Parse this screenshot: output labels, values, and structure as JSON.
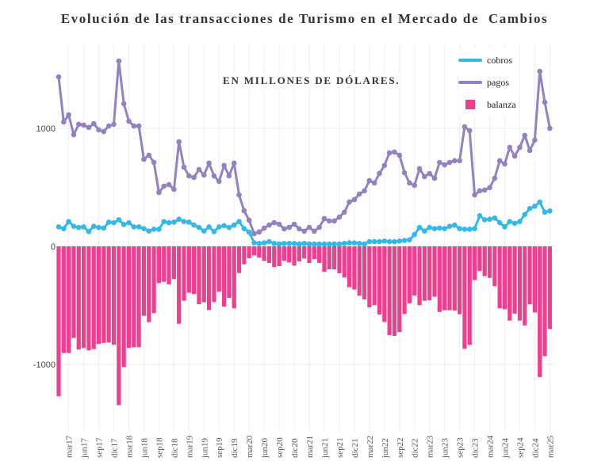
{
  "chart_data": {
    "type": "bar+line",
    "title": "Evolución de las transacciones de Turismo en el Mercado de  Cambios",
    "subtitle": "EN MILLONES DE DÓLARES.",
    "xlabel": "",
    "ylabel": "",
    "ylim": [
      -1400,
      1650
    ],
    "yticks": [
      "1000",
      "0",
      "-1000"
    ],
    "ytick_values": [
      1000,
      0,
      -1000
    ],
    "grid": true,
    "legend_position": "top-right",
    "xtick_labels": [
      "mar17",
      "jun17",
      "sep17",
      "dic17",
      "mar18",
      "jun18",
      "sep18",
      "dic18",
      "mar19",
      "jun19",
      "sep19",
      "dic19",
      "mar20",
      "jun20",
      "sep20",
      "dic20",
      "mar21",
      "jun21",
      "sep21",
      "dic21",
      "mar22",
      "jun22",
      "sep22",
      "dic22",
      "mar23",
      "jun23",
      "sep23",
      "dic23",
      "mar24",
      "jun24",
      "sep24",
      "dic24",
      "mar25"
    ],
    "x_start": "ene17",
    "x_end": "mar25",
    "series": [
      {
        "name": "cobros",
        "type": "line",
        "color": "#33b8e8",
        "values": [
          165,
          150,
          210,
          170,
          160,
          165,
          125,
          170,
          160,
          155,
          205,
          200,
          225,
          185,
          200,
          165,
          165,
          150,
          130,
          145,
          145,
          210,
          200,
          205,
          230,
          210,
          205,
          180,
          160,
          130,
          165,
          125,
          165,
          175,
          160,
          180,
          210,
          150,
          120,
          30,
          25,
          30,
          40,
          25,
          20,
          25,
          25,
          25,
          20,
          25,
          20,
          20,
          20,
          20,
          20,
          20,
          20,
          25,
          30,
          30,
          25,
          20,
          40,
          40,
          40,
          45,
          40,
          40,
          45,
          50,
          55,
          100,
          160,
          130,
          160,
          150,
          155,
          150,
          170,
          180,
          150,
          145,
          145,
          150,
          260,
          225,
          230,
          240,
          200,
          165,
          210,
          195,
          210,
          270,
          320,
          340,
          375,
          290,
          300
        ]
      },
      {
        "name": "pagos",
        "type": "line",
        "color": "#9381c2",
        "values": [
          1436,
          1054,
          1114,
          946,
          1034,
          1027,
          1007,
          1040,
          987,
          973,
          1020,
          1034,
          1570,
          1208,
          1060,
          1020,
          1020,
          738,
          772,
          711,
          456,
          510,
          523,
          483,
          886,
          671,
          597,
          584,
          651,
          604,
          705,
          597,
          550,
          685,
          597,
          705,
          436,
          302,
          221,
          107,
          121,
          154,
          181,
          201,
          188,
          148,
          161,
          188,
          148,
          128,
          161,
          128,
          161,
          235,
          215,
          215,
          248,
          289,
          376,
          396,
          443,
          470,
          557,
          537,
          617,
          685,
          792,
          799,
          772,
          624,
          537,
          517,
          658,
          591,
          617,
          577,
          711,
          691,
          711,
          725,
          725,
          1013,
          980,
          436,
          470,
          477,
          497,
          577,
          725,
          698,
          839,
          765,
          839,
          940,
          812,
          900,
          1483,
          1221,
          1000
        ]
      },
      {
        "name": "balanza",
        "type": "bar",
        "color": "#ef3e8e",
        "values": [
          -1271,
          -904,
          -904,
          -776,
          -874,
          -862,
          -882,
          -870,
          -827,
          -818,
          -815,
          -834,
          -1345,
          -1023,
          -860,
          -855,
          -855,
          -588,
          -642,
          -566,
          -311,
          -300,
          -323,
          -278,
          -656,
          -461,
          -392,
          -404,
          -491,
          -474,
          -540,
          -472,
          -385,
          -510,
          -437,
          -525,
          -226,
          -152,
          -101,
          -77,
          -96,
          -124,
          -141,
          -176,
          -168,
          -123,
          -136,
          -163,
          -128,
          -103,
          -141,
          -108,
          -141,
          -215,
          -195,
          -195,
          -228,
          -264,
          -346,
          -366,
          -418,
          -450,
          -517,
          -497,
          -577,
          -640,
          -752,
          -759,
          -727,
          -574,
          -482,
          -417,
          -498,
          -461,
          -457,
          -427,
          -556,
          -541,
          -541,
          -545,
          -575,
          -868,
          -835,
          -286,
          -210,
          -252,
          -267,
          -337,
          -525,
          -533,
          -629,
          -570,
          -629,
          -670,
          -492,
          -560,
          -1108,
          -931,
          -700
        ]
      }
    ]
  }
}
